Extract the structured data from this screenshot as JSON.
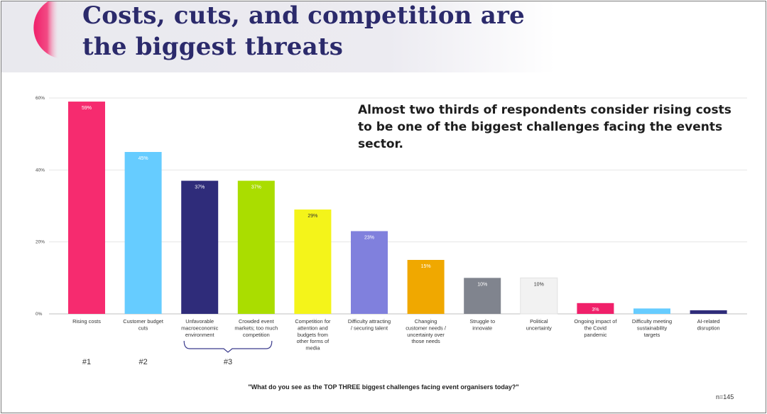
{
  "header": {
    "title_line1": "Costs, cuts, and competition are",
    "title_line2": "the biggest threats"
  },
  "callout": "Almost two thirds of respondents consider rising costs to be one of the biggest challenges facing the events sector.",
  "question": "\"What do you see as the TOP THREE biggest challenges facing event organisers today?\"",
  "n_label": "n=145",
  "colors": {
    "title": "#2b2a6b",
    "accent": "#f0206a",
    "grid": "#e6e6e6",
    "bracket": "#3a3a8c"
  },
  "chart_data": {
    "type": "bar",
    "title": "",
    "xlabel": "",
    "ylabel": "",
    "ylim": [
      0,
      60
    ],
    "yticks": [
      0,
      20,
      40,
      60
    ],
    "ytick_labels": [
      "0%",
      "20%",
      "40%",
      "60%"
    ],
    "grid": true,
    "categories": [
      [
        "Rising costs"
      ],
      [
        "Customer budget",
        "cuts"
      ],
      [
        "Unfavorable",
        "macroeconomic",
        "environment"
      ],
      [
        "Crowded event",
        "markets; too much",
        "competition"
      ],
      [
        "Competition for",
        "attention and",
        "budgets from",
        "other forms of",
        "media"
      ],
      [
        "Difficulty attracting",
        "/ securing talent"
      ],
      [
        "Changing",
        "customer needs /",
        "uncertainty over",
        "those needs"
      ],
      [
        "Struggle to",
        "innovate"
      ],
      [
        "Political",
        "uncertainty"
      ],
      [
        "Ongoing impact of",
        "the Covid",
        "pandemic"
      ],
      [
        "Difficulty meeting",
        "sustainability",
        "targets"
      ],
      [
        "AI-related",
        "disruption"
      ]
    ],
    "values": [
      59,
      45,
      37,
      37,
      29,
      23,
      15,
      10,
      10,
      3,
      1.5,
      1
    ],
    "data_labels": [
      "59%",
      "45%",
      "37%",
      "37%",
      "29%",
      "23%",
      "15%",
      "10%",
      "10%",
      "3%",
      "",
      ""
    ],
    "bar_colors": [
      "#f62b6f",
      "#66ccff",
      "#2f2c7a",
      "#aadd00",
      "#f4f41a",
      "#8080dd",
      "#f0a800",
      "#80848e",
      "#f2f2f2",
      "#f0206a",
      "#66ccff",
      "#2f2c7a"
    ],
    "label_colors": [
      "#ffffff",
      "#ffffff",
      "#ffffff",
      "#ffffff",
      "#333333",
      "#ffffff",
      "#ffffff",
      "#ffffff",
      "#333333",
      "#ffffff",
      "#ffffff",
      "#ffffff"
    ],
    "ranks": [
      {
        "label": "#1",
        "from": 0,
        "to": 0,
        "bracket": false
      },
      {
        "label": "#2",
        "from": 1,
        "to": 1,
        "bracket": false
      },
      {
        "label": "#3",
        "from": 2,
        "to": 3,
        "bracket": true
      }
    ]
  }
}
